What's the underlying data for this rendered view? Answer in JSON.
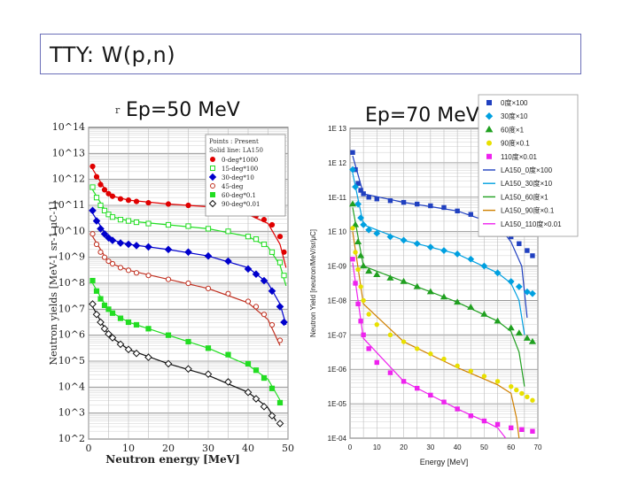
{
  "slide": {
    "title": "TTY: W(p,n)",
    "left_heading": "Ep=50 MeV",
    "right_heading": "Ep=70 MeV",
    "bullet": "r"
  },
  "colors": {
    "frame": "#6b6fb8",
    "red": "#e00000",
    "green": "#22dd22",
    "blue": "#0000cc",
    "brown": "#c03020",
    "black": "#111111",
    "cyan": "#00a0e0",
    "dgreen": "#20a020",
    "yellow": "#e8e000",
    "magenta": "#ee22ee",
    "navy": "#2040c0",
    "orange": "#d08000"
  },
  "chart_data": [
    {
      "type": "scatter",
      "title": "",
      "xlabel": "Neutron energy [MeV]",
      "ylabel": "Neutron yields [MeV-1 sr-1 μC-1]",
      "xlim": [
        0,
        50
      ],
      "ylog": true,
      "ylim_exp": [
        2,
        14
      ],
      "x_ticks": [
        "0",
        "10",
        "20",
        "30",
        "40",
        "50"
      ],
      "y_ticks": [
        "10^2",
        "10^3",
        "10^4",
        "10^5",
        "10^6",
        "10^7",
        "10^8",
        "10^9",
        "10^10",
        "10^11",
        "10^12",
        "10^13",
        "10^14"
      ],
      "grid": true,
      "legend": {
        "position": "top-right",
        "header1": "Points : Present",
        "header2": "Solid line: LA150",
        "entries": [
          "0-deg*1000",
          "15-deg*100",
          "30-deg*10",
          "45-deg",
          "60-deg*0.1",
          "90-deg*0.01"
        ]
      },
      "series": [
        {
          "name": "0-deg*1000",
          "marker": "circle",
          "fill": true,
          "color_key": "red",
          "x": [
            1,
            2,
            3,
            4,
            5,
            6,
            8,
            10,
            12,
            15,
            20,
            25,
            30,
            35,
            40,
            42,
            44,
            46,
            48,
            49
          ],
          "y_exp": [
            12.5,
            12.1,
            11.8,
            11.6,
            11.45,
            11.35,
            11.25,
            11.2,
            11.15,
            11.1,
            11.05,
            11.0,
            10.95,
            10.85,
            10.7,
            10.6,
            10.45,
            10.25,
            9.8,
            9.2
          ],
          "fit": [
            [
              1,
              12.4
            ],
            [
              5,
              11.4
            ],
            [
              10,
              11.2
            ],
            [
              20,
              11.05
            ],
            [
              30,
              10.95
            ],
            [
              40,
              10.65
            ],
            [
              45,
              10.3
            ],
            [
              48,
              9.5
            ],
            [
              49.5,
              8.6
            ]
          ]
        },
        {
          "name": "15-deg*100",
          "marker": "square",
          "fill": false,
          "color_key": "green",
          "x": [
            1,
            2,
            3,
            4,
            5,
            6,
            8,
            10,
            12,
            15,
            20,
            25,
            30,
            35,
            40,
            42,
            44,
            46,
            48,
            49
          ],
          "y_exp": [
            11.7,
            11.3,
            11.0,
            10.8,
            10.65,
            10.55,
            10.45,
            10.4,
            10.35,
            10.3,
            10.25,
            10.2,
            10.1,
            10.0,
            9.8,
            9.7,
            9.5,
            9.2,
            8.8,
            8.3
          ],
          "fit": [
            [
              1,
              11.6
            ],
            [
              5,
              10.6
            ],
            [
              10,
              10.4
            ],
            [
              20,
              10.25
            ],
            [
              30,
              10.1
            ],
            [
              40,
              9.8
            ],
            [
              45,
              9.4
            ],
            [
              48,
              8.7
            ],
            [
              49.5,
              7.9
            ]
          ]
        },
        {
          "name": "30-deg*10",
          "marker": "diamond",
          "fill": true,
          "color_key": "blue",
          "x": [
            1,
            2,
            3,
            4,
            5,
            6,
            8,
            10,
            12,
            15,
            20,
            25,
            30,
            35,
            40,
            42,
            44,
            46,
            48,
            49
          ],
          "y_exp": [
            10.8,
            10.4,
            10.1,
            9.9,
            9.75,
            9.65,
            9.55,
            9.5,
            9.45,
            9.4,
            9.3,
            9.2,
            9.05,
            8.85,
            8.55,
            8.35,
            8.1,
            7.7,
            7.1,
            6.5
          ],
          "fit": [
            [
              1,
              10.7
            ],
            [
              5,
              9.7
            ],
            [
              10,
              9.5
            ],
            [
              20,
              9.3
            ],
            [
              30,
              9.05
            ],
            [
              40,
              8.6
            ],
            [
              45,
              8.0
            ],
            [
              48,
              7.2
            ],
            [
              49.5,
              6.4
            ]
          ]
        },
        {
          "name": "45-deg",
          "marker": "circle",
          "fill": false,
          "color_key": "brown",
          "x": [
            1,
            2,
            3,
            4,
            5,
            6,
            8,
            10,
            12,
            15,
            20,
            25,
            30,
            35,
            40,
            42,
            44,
            46,
            48
          ],
          "y_exp": [
            9.9,
            9.5,
            9.2,
            9.0,
            8.85,
            8.75,
            8.6,
            8.5,
            8.4,
            8.3,
            8.15,
            8.0,
            7.8,
            7.6,
            7.3,
            7.1,
            6.8,
            6.4,
            5.8
          ],
          "fit": [
            [
              1,
              9.8
            ],
            [
              5,
              8.8
            ],
            [
              10,
              8.5
            ],
            [
              20,
              8.15
            ],
            [
              30,
              7.8
            ],
            [
              40,
              7.25
            ],
            [
              45,
              6.6
            ],
            [
              48,
              5.6
            ]
          ]
        },
        {
          "name": "60-deg*0.1",
          "marker": "square",
          "fill": true,
          "color_key": "green",
          "x": [
            1,
            2,
            3,
            4,
            5,
            6,
            8,
            10,
            12,
            15,
            20,
            25,
            30,
            35,
            40,
            42,
            44,
            46,
            48
          ],
          "y_exp": [
            8.1,
            7.7,
            7.4,
            7.15,
            7.0,
            6.85,
            6.65,
            6.5,
            6.4,
            6.25,
            6.0,
            5.75,
            5.5,
            5.25,
            4.9,
            4.65,
            4.35,
            3.95,
            3.4
          ],
          "fit": [
            [
              1,
              8.0
            ],
            [
              5,
              6.95
            ],
            [
              10,
              6.5
            ],
            [
              20,
              6.0
            ],
            [
              30,
              5.5
            ],
            [
              40,
              4.85
            ],
            [
              45,
              4.3
            ],
            [
              48,
              3.5
            ]
          ]
        },
        {
          "name": "90-deg*0.01",
          "marker": "diamond",
          "fill": false,
          "color_key": "black",
          "x": [
            1,
            2,
            3,
            4,
            5,
            6,
            8,
            10,
            12,
            15,
            20,
            25,
            30,
            35,
            40,
            42,
            44,
            46,
            48
          ],
          "y_exp": [
            7.2,
            6.8,
            6.5,
            6.25,
            6.05,
            5.9,
            5.65,
            5.45,
            5.3,
            5.15,
            4.9,
            4.7,
            4.5,
            4.2,
            3.8,
            3.55,
            3.25,
            2.9,
            2.6
          ],
          "fit": [
            [
              1,
              7.1
            ],
            [
              5,
              6.0
            ],
            [
              10,
              5.45
            ],
            [
              20,
              4.9
            ],
            [
              30,
              4.45
            ],
            [
              40,
              3.8
            ],
            [
              45,
              3.2
            ],
            [
              47,
              2.7
            ]
          ]
        }
      ]
    },
    {
      "type": "scatter",
      "title": "",
      "xlabel": "Energy [MeV]",
      "ylabel": "Neutron Yield [neutron/MeV/sr/μC]",
      "xlim": [
        0,
        70
      ],
      "ylog": true,
      "ylim_exp": [
        4,
        13
      ],
      "x_ticks": [
        "0",
        "10",
        "20",
        "30",
        "40",
        "50",
        "60",
        "70"
      ],
      "y_ticks": [
        "1E-04",
        "1E-05",
        "1E-06",
        "1E-07",
        "1E-08",
        "1E-09",
        "1E 10",
        "1E-11",
        "1E 12",
        "1E 13"
      ],
      "grid": true,
      "legend": {
        "position": "top-right",
        "entries": [
          {
            "label": "0度×100",
            "kind": "square",
            "color_key": "navy"
          },
          {
            "label": "30度×10",
            "kind": "diamond",
            "color_key": "cyan"
          },
          {
            "label": "60度×1",
            "kind": "triangle",
            "color_key": "dgreen"
          },
          {
            "label": "90度×0.1",
            "kind": "circle",
            "color_key": "yellow"
          },
          {
            "label": "110度×0.01",
            "kind": "square",
            "color_key": "magenta"
          },
          {
            "label": "LA150_0度×100",
            "kind": "line",
            "color_key": "navy"
          },
          {
            "label": "LA150_30度×10",
            "kind": "line",
            "color_key": "cyan"
          },
          {
            "label": "LA150_60度×1",
            "kind": "line",
            "color_key": "dgreen"
          },
          {
            "label": "LA150_90度×0.1",
            "kind": "line",
            "color_key": "orange"
          },
          {
            "label": "LA150_110度×0.01",
            "kind": "line",
            "color_key": "magenta"
          }
        ]
      },
      "series": [
        {
          "name": "0度×100",
          "marker": "square",
          "color_key": "navy",
          "x": [
            1,
            2,
            3,
            4,
            5,
            7,
            10,
            15,
            20,
            25,
            30,
            35,
            40,
            45,
            50,
            55,
            60,
            63,
            66,
            68
          ],
          "y_exp": [
            12.3,
            11.8,
            11.4,
            11.2,
            11.1,
            11.0,
            10.95,
            10.9,
            10.85,
            10.8,
            10.75,
            10.7,
            10.6,
            10.5,
            10.35,
            10.15,
            9.85,
            9.65,
            9.45,
            9.3
          ],
          "fit": [
            [
              1,
              12.2
            ],
            [
              5,
              11.1
            ],
            [
              20,
              10.85
            ],
            [
              40,
              10.6
            ],
            [
              55,
              10.2
            ],
            [
              60,
              9.7
            ],
            [
              64,
              9.0
            ],
            [
              66,
              7.5
            ]
          ]
        },
        {
          "name": "30度×10",
          "marker": "diamond",
          "color_key": "cyan",
          "x": [
            1,
            2,
            3,
            4,
            5,
            7,
            10,
            15,
            20,
            25,
            30,
            35,
            40,
            45,
            50,
            55,
            60,
            63,
            66,
            68
          ],
          "y_exp": [
            11.8,
            11.3,
            10.8,
            10.4,
            10.2,
            10.05,
            9.95,
            9.85,
            9.75,
            9.65,
            9.55,
            9.45,
            9.35,
            9.2,
            9.0,
            8.8,
            8.55,
            8.4,
            8.25,
            8.2
          ],
          "fit": [
            [
              1,
              11.7
            ],
            [
              5,
              10.2
            ],
            [
              20,
              9.75
            ],
            [
              40,
              9.35
            ],
            [
              55,
              8.8
            ],
            [
              60,
              8.5
            ],
            [
              63,
              8.0
            ],
            [
              65,
              7.0
            ]
          ]
        },
        {
          "name": "60度×1",
          "marker": "triangle",
          "color_key": "dgreen",
          "x": [
            1,
            2,
            3,
            4,
            5,
            7,
            10,
            15,
            20,
            25,
            30,
            35,
            40,
            45,
            50,
            55,
            60,
            63,
            66,
            68
          ],
          "y_exp": [
            10.8,
            10.2,
            9.7,
            9.3,
            9.0,
            8.85,
            8.75,
            8.65,
            8.55,
            8.4,
            8.25,
            8.1,
            7.95,
            7.8,
            7.6,
            7.4,
            7.2,
            7.05,
            6.9,
            6.8
          ],
          "fit": [
            [
              1,
              10.7
            ],
            [
              5,
              9.0
            ],
            [
              20,
              8.55
            ],
            [
              40,
              7.95
            ],
            [
              55,
              7.4
            ],
            [
              60,
              7.1
            ],
            [
              63,
              6.5
            ],
            [
              65,
              5.5
            ]
          ]
        },
        {
          "name": "90度×0.1",
          "marker": "circle",
          "color_key": "yellow",
          "x": [
            1,
            2,
            3,
            4,
            5,
            7,
            10,
            15,
            20,
            25,
            30,
            35,
            40,
            45,
            50,
            55,
            60,
            62,
            64,
            66,
            68
          ],
          "y_exp": [
            10.1,
            9.4,
            8.9,
            8.4,
            8.0,
            7.6,
            7.3,
            7.0,
            6.8,
            6.6,
            6.45,
            6.3,
            6.1,
            5.95,
            5.8,
            5.65,
            5.5,
            5.4,
            5.3,
            5.2,
            5.1
          ],
          "fit": [
            [
              1,
              10.0
            ],
            [
              5,
              7.9
            ],
            [
              20,
              6.8
            ],
            [
              40,
              6.05
            ],
            [
              55,
              5.55
            ],
            [
              60,
              5.3
            ],
            [
              62,
              4.6
            ],
            [
              63,
              4.0
            ]
          ]
        },
        {
          "name": "110度×0.01",
          "marker": "square",
          "color_key": "magenta",
          "x": [
            1,
            2,
            3,
            4,
            5,
            7,
            10,
            15,
            20,
            25,
            30,
            35,
            40,
            45,
            50,
            55,
            60,
            64,
            68
          ],
          "y_exp": [
            9.2,
            8.5,
            7.9,
            7.4,
            7.0,
            6.6,
            6.2,
            5.9,
            5.65,
            5.45,
            5.25,
            5.05,
            4.85,
            4.65,
            4.5,
            4.4,
            4.3,
            4.25,
            4.2
          ],
          "fit": [
            [
              1,
              9.1
            ],
            [
              5,
              6.9
            ],
            [
              20,
              5.65
            ],
            [
              40,
              4.85
            ],
            [
              50,
              4.5
            ],
            [
              55,
              4.3
            ],
            [
              58,
              4.0
            ]
          ]
        }
      ]
    }
  ]
}
